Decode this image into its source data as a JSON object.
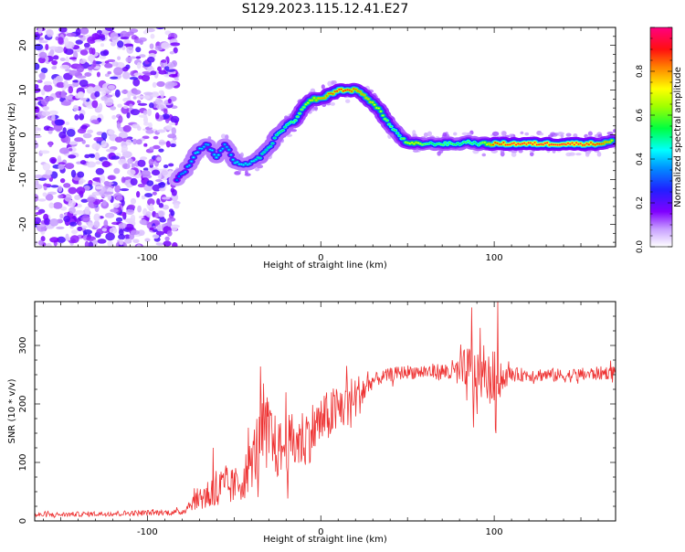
{
  "title": "S129.2023.115.12.41.E27",
  "chart_data": [
    {
      "type": "heatmap",
      "xlabel": "Height of straight line (km)",
      "ylabel": "Frequency (Hz)",
      "xlim": [
        -165,
        170
      ],
      "ylim": [
        -25,
        24
      ],
      "x_ticks": [
        -100,
        0,
        100
      ],
      "y_ticks": [
        -20,
        -10,
        0,
        10,
        20
      ],
      "colorbar": {
        "label": "Normalized spectral amplitude",
        "range": [
          0.0,
          1.0
        ],
        "ticks": [
          "0.0",
          "0.2",
          "0.4",
          "0.6",
          "0.8"
        ],
        "colors": [
          "#ffffff",
          "#a000ff",
          "#3000ff",
          "#00a0ff",
          "#00ffff",
          "#00ff40",
          "#a0ff00",
          "#ffff00",
          "#ff8000",
          "#ff0000",
          "#ff0080"
        ]
      },
      "noise_region_x": [
        -165,
        -83
      ],
      "ridge": {
        "x": [
          -83,
          -78,
          -72,
          -66,
          -60,
          -55,
          -50,
          -45,
          -40,
          -35,
          -30,
          -25,
          -20,
          -15,
          -10,
          -5,
          0,
          5,
          10,
          15,
          20,
          25,
          30,
          35,
          40,
          45,
          50,
          55,
          60,
          65,
          70,
          75,
          80,
          85,
          90,
          95,
          100,
          110,
          120,
          130,
          140,
          150,
          160,
          168
        ],
        "y": [
          -10,
          -8,
          -4,
          -2,
          -5,
          -2,
          -6,
          -7,
          -6,
          -5,
          -3,
          0,
          2,
          3,
          6,
          8,
          8,
          9,
          10,
          10,
          10,
          9,
          7,
          5,
          2,
          0,
          -2,
          -2,
          -2,
          -2,
          -2,
          -2,
          -2,
          -1.5,
          -2,
          -2,
          -2,
          -2,
          -2,
          -2,
          -2,
          -2,
          -2,
          -1.5
        ],
        "amplitude": [
          0.35,
          0.4,
          0.45,
          0.4,
          0.45,
          0.4,
          0.45,
          0.45,
          0.45,
          0.5,
          0.5,
          0.55,
          0.55,
          0.6,
          0.65,
          0.75,
          0.8,
          0.85,
          0.9,
          0.9,
          0.85,
          0.8,
          0.75,
          0.7,
          0.6,
          0.55,
          0.7,
          0.75,
          0.6,
          0.55,
          0.6,
          0.6,
          0.55,
          0.6,
          0.55,
          0.7,
          0.9,
          0.95,
          0.95,
          0.95,
          0.95,
          0.95,
          0.9,
          0.75
        ]
      }
    },
    {
      "type": "line",
      "xlabel": "Height of straight line (km)",
      "ylabel": "SNR (10 * v/v)",
      "xlim": [
        -165,
        170
      ],
      "ylim": [
        0,
        375
      ],
      "x_ticks": [
        -100,
        0,
        100
      ],
      "y_ticks": [
        0,
        100,
        200,
        300
      ],
      "series": [
        {
          "color": "#ee3333",
          "baseline_x": [
            -165,
            -80,
            -75,
            -70,
            -60,
            -50,
            -45,
            -40,
            -35,
            -30,
            -25,
            -20,
            -10,
            0,
            10,
            20,
            25,
            30,
            40,
            50,
            60,
            70,
            80,
            85,
            90,
            95,
            100,
            110,
            120,
            130,
            140,
            150,
            160,
            170
          ],
          "baseline_y": [
            10,
            15,
            30,
            40,
            50,
            60,
            70,
            100,
            140,
            150,
            120,
            130,
            140,
            170,
            190,
            210,
            225,
            240,
            250,
            255,
            255,
            255,
            255,
            250,
            245,
            245,
            240,
            250,
            250,
            250,
            248,
            250,
            252,
            255
          ],
          "noise_amplitude_x": [
            -165,
            -80,
            -70,
            -60,
            -50,
            -40,
            -35,
            -30,
            -25,
            -20,
            -10,
            0,
            10,
            20,
            25,
            30,
            50,
            70,
            80,
            85,
            90,
            95,
            100,
            102,
            110,
            130,
            150,
            170
          ],
          "noise_amplitude_y": [
            4,
            5,
            20,
            45,
            30,
            45,
            70,
            65,
            50,
            50,
            55,
            45,
            45,
            40,
            30,
            12,
            12,
            15,
            25,
            55,
            40,
            35,
            55,
            30,
            12,
            12,
            12,
            12
          ],
          "spikes": [
            {
              "x": -62,
              "y": 125
            },
            {
              "x": -33,
              "y": 235
            },
            {
              "x": -20,
              "y": 220
            },
            {
              "x": 15,
              "y": 265
            },
            {
              "x": 87,
              "y": 365
            },
            {
              "x": 92,
              "y": 330
            },
            {
              "x": 102,
              "y": 375
            },
            {
              "x": 101,
              "y": 150
            },
            {
              "x": 88,
              "y": 160
            }
          ]
        }
      ]
    }
  ]
}
